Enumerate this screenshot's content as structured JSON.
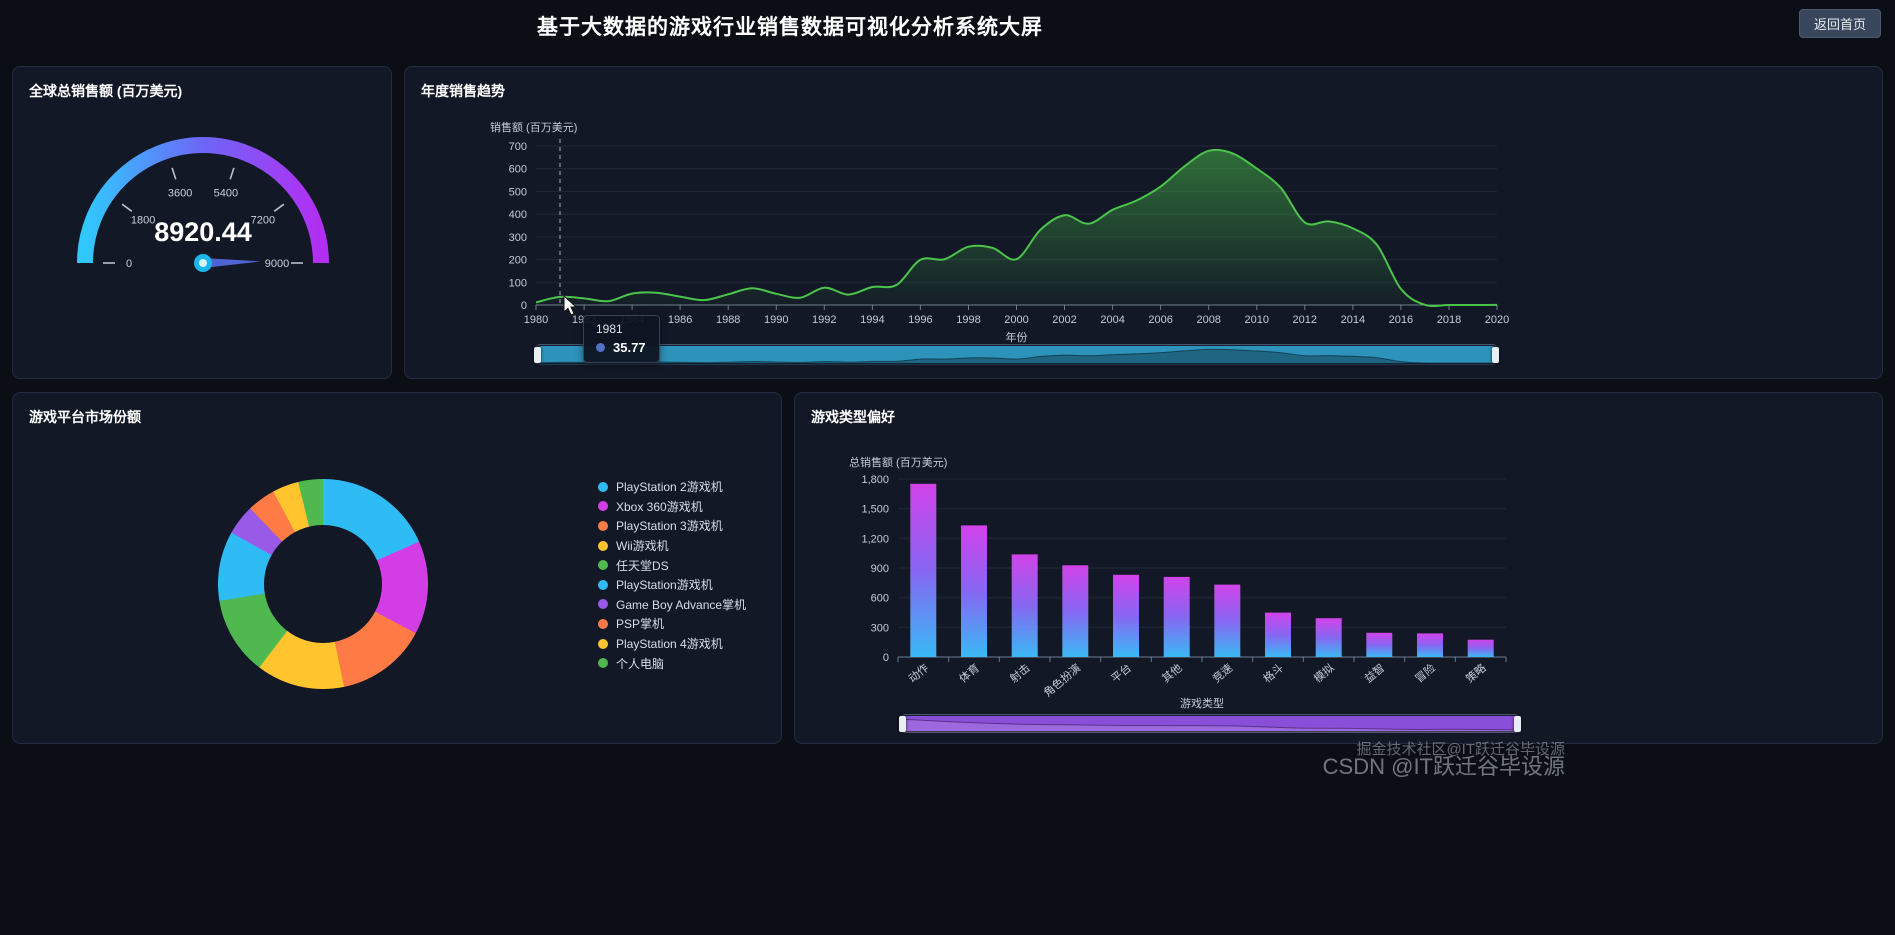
{
  "header": {
    "title": "基于大数据的游戏行业销售数据可视化分析系统大屏",
    "back_button": "返回首页"
  },
  "watermark": {
    "line1": "掘金技术社区@IT跃迁谷毕设源",
    "line2": "CSDN @IT跃迁谷毕设源"
  },
  "panels": {
    "gauge": {
      "title": "全球总销售额 (百万美元)"
    },
    "trend": {
      "title": "年度销售趋势"
    },
    "pie": {
      "title": "游戏平台市场份额"
    },
    "bar": {
      "title": "游戏类型偏好"
    }
  },
  "chart_data": [
    {
      "type": "gauge",
      "title": "全球总销售额 (百万美元)",
      "min": 0,
      "max": 9000,
      "value": 8920.44,
      "ticks": [
        0,
        1800,
        3600,
        5400,
        7200,
        9000
      ],
      "colors": [
        "#30c9ff",
        "#6e66f8",
        "#b32ef2"
      ],
      "pointer_color": "#4f63d2"
    },
    {
      "type": "area",
      "title": "年度销售趋势",
      "xlabel": "年份",
      "ylabel": "销售额 (百万美元)",
      "ylim": [
        0,
        700
      ],
      "y_ticks": [
        0,
        100,
        200,
        300,
        400,
        500,
        600,
        700
      ],
      "x": [
        1980,
        1981,
        1982,
        1983,
        1984,
        1985,
        1986,
        1987,
        1988,
        1989,
        1990,
        1991,
        1992,
        1993,
        1994,
        1995,
        1996,
        1997,
        1998,
        1999,
        2000,
        2001,
        2002,
        2003,
        2004,
        2005,
        2006,
        2007,
        2008,
        2009,
        2010,
        2011,
        2012,
        2013,
        2014,
        2015,
        2016,
        2017,
        2018,
        2019,
        2020
      ],
      "values": [
        11.38,
        35.77,
        28.86,
        16.79,
        50.36,
        53.94,
        37.07,
        21.74,
        47.22,
        73.45,
        49.39,
        32.23,
        76.16,
        45.98,
        79.17,
        88.11,
        199.15,
        200.98,
        256.47,
        251.27,
        201.56,
        331.47,
        395.52,
        357.85,
        419.31,
        459.94,
        521.04,
        611.13,
        678.9,
        667.3,
        600.45,
        515.99,
        363.54,
        368.11,
        337.05,
        264.44,
        70.93,
        0.74,
        0,
        0,
        0.29
      ],
      "line_color": "#4bc44b",
      "hover_index": 1,
      "tooltip": {
        "year": "1981",
        "value": "35.77",
        "marker_color": "#5470c6"
      },
      "slider_color": "#2d93ba"
    },
    {
      "type": "pie",
      "title": "游戏平台市场份额",
      "labels": [
        "PlayStation 2游戏机",
        "Xbox 360游戏机",
        "PlayStation 3游戏机",
        "Wii游戏机",
        "任天堂DS",
        "PlayStation游戏机",
        "Game Boy Advance掌机",
        "PSP掌机",
        "PlayStation 4游戏机",
        "个人电脑"
      ],
      "values": [
        1255.64,
        979.96,
        957.84,
        926.71,
        822.49,
        730.66,
        318.5,
        296.28,
        278.1,
        258.82
      ],
      "colors": [
        "#2fbcf5",
        "#d23de6",
        "#ff7b45",
        "#ffc42e",
        "#4fb94f",
        "#2fbcf5",
        "#9a5ae8",
        "#ff7b45",
        "#ffc42e",
        "#4fb94f"
      ]
    },
    {
      "type": "bar",
      "title": "游戏类型偏好",
      "xlabel": "游戏类型",
      "ylabel": "总销售额 (百万美元)",
      "ylim": [
        0,
        1800
      ],
      "y_ticks": [
        "0",
        "300",
        "600",
        "900",
        "1,200",
        "1,500",
        "1,800"
      ],
      "categories": [
        "动作",
        "体育",
        "射击",
        "角色扮演",
        "平台",
        "其他",
        "竞速",
        "格斗",
        "模拟",
        "益智",
        "冒险",
        "策略"
      ],
      "values": [
        1751.18,
        1330.93,
        1037.37,
        927.37,
        831.37,
        809.96,
        732.04,
        448.91,
        392.2,
        244.95,
        239.04,
        175.12
      ],
      "bar_gradient": [
        "#d243ea",
        "#8766f2",
        "#3ab9f4"
      ],
      "slider_color": "#8a4fd8"
    }
  ]
}
